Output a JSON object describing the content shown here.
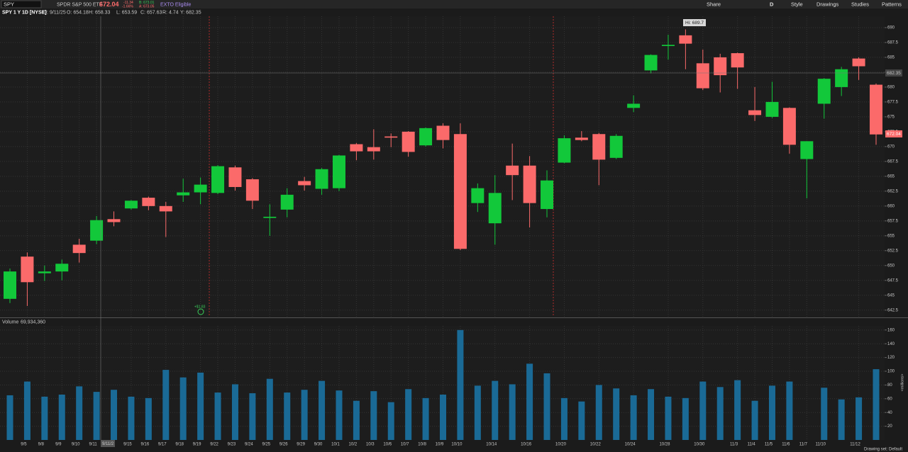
{
  "toolbar": {
    "symbol": "SPY",
    "description": "SPDR S&P 500 ETF",
    "last": "672.04",
    "change": "-11.34",
    "change_pct": "-1.66%",
    "bid": "B: 673.01",
    "ask": "A: 673.05",
    "badge": "EXTO Eligible",
    "buttons": [
      "Share",
      "D",
      "Style",
      "Drawings",
      "Studies",
      "Patterns"
    ]
  },
  "header": {
    "title": "SPY 1 Y 1D [NYSE]",
    "date": "D: 9/11/25",
    "open": "O: 654.18",
    "high": "H: 658.33",
    "low": "L: 653.59",
    "close": "C: 657.63",
    "range": "R: 4.74",
    "cursor": "Y: 682.35"
  },
  "chart_data": [
    {
      "type": "candlestick",
      "categories": [
        null,
        "9/5",
        "9/8",
        "9/9",
        "9/10",
        "9/11",
        null,
        "9/15",
        "9/16",
        "9/17",
        "9/18",
        "9/19",
        "9/22",
        "9/23",
        "9/24",
        "9/25",
        "9/26",
        "9/29",
        "9/30",
        "10/1",
        "10/2",
        "10/3",
        "10/6",
        "10/7",
        "10/8",
        "10/9",
        "10/10",
        null,
        "10/14",
        null,
        "10/16",
        null,
        "10/20",
        null,
        "10/22",
        null,
        "10/24",
        null,
        "10/28",
        null,
        "10/30",
        null,
        "11/3",
        "11/4",
        "11/5",
        "11/6",
        "11/7",
        "11/10",
        null,
        "11/12",
        null
      ],
      "open": [
        644.4,
        651.5,
        648.7,
        649.0,
        653.5,
        654.18,
        657.8,
        659.6,
        661.4,
        660.0,
        661.8,
        662.3,
        662.2,
        666.5,
        664.5,
        658.0,
        659.4,
        664.2,
        662.9,
        663.0,
        670.4,
        669.9,
        671.7,
        672.5,
        670.2,
        673.5,
        672.1,
        660.5,
        657.1,
        666.8,
        666.8,
        659.5,
        667.3,
        671.5,
        672.1,
        668.1,
        676.5,
        682.8,
        686.9,
        688.7,
        684.0,
        685.0,
        685.7,
        676.1,
        675.0,
        676.5,
        667.9,
        677.2,
        680.0,
        684.8,
        680.4
      ],
      "high": [
        649.5,
        652.2,
        650.0,
        651.0,
        654.5,
        658.33,
        659.1,
        661.0,
        661.6,
        660.7,
        664.6,
        664.8,
        666.9,
        666.8,
        664.7,
        660.3,
        663.0,
        664.9,
        666.4,
        668.6,
        670.6,
        672.9,
        672.2,
        672.6,
        673.2,
        673.9,
        673.9,
        663.8,
        665.2,
        670.5,
        668.4,
        666.0,
        671.9,
        672.6,
        672.3,
        672.1,
        678.6,
        685.5,
        688.8,
        689.7,
        686.3,
        685.6,
        685.8,
        680.0,
        680.9,
        676.6,
        670.9,
        681.5,
        683.4,
        685.0,
        680.6
      ],
      "low": [
        643.7,
        643.2,
        647.4,
        647.5,
        650.5,
        653.59,
        656.6,
        659.4,
        659.3,
        654.8,
        660.7,
        660.3,
        662.0,
        662.6,
        659.5,
        655.0,
        658.1,
        662.6,
        661.9,
        662.5,
        667.7,
        667.8,
        669.9,
        668.3,
        670.0,
        669.7,
        652.6,
        659.0,
        653.5,
        661.0,
        656.4,
        658.1,
        667.2,
        670.9,
        663.5,
        667.9,
        675.8,
        682.3,
        684.6,
        683.0,
        679.5,
        679.1,
        679.7,
        674.3,
        674.8,
        668.8,
        661.3,
        674.7,
        678.5,
        681.2,
        670.3
      ],
      "close": [
        649.0,
        647.2,
        649.0,
        650.3,
        652.1,
        657.63,
        657.3,
        660.9,
        660.0,
        659.1,
        662.3,
        663.6,
        666.7,
        663.2,
        660.9,
        658.2,
        661.9,
        663.5,
        666.2,
        668.5,
        669.2,
        669.2,
        671.5,
        669.1,
        673.1,
        671.1,
        652.8,
        663.0,
        662.2,
        665.2,
        660.5,
        664.3,
        671.4,
        671.1,
        667.8,
        671.8,
        677.2,
        685.4,
        687.1,
        687.3,
        679.8,
        682.0,
        683.3,
        675.3,
        677.5,
        670.3,
        670.9,
        681.4,
        683.0,
        683.5,
        672.04
      ],
      "up_color": "#12c83a",
      "down_color": "#fb6a6a",
      "ylim": [
        641.4,
        691.9
      ],
      "yticks": [
        642.5,
        645,
        647.5,
        650,
        652.5,
        655,
        657.5,
        660,
        662.5,
        665,
        667.5,
        670,
        672.5,
        675,
        677.5,
        680,
        682.5,
        685,
        687.5,
        690
      ],
      "grid": true,
      "annotations": {
        "high_label": "Hi: 689.7",
        "cursor_price": "682.35",
        "last_price": "672.04",
        "dividend": "+$1.83",
        "cursor_date": "9/11/2"
      }
    },
    {
      "type": "bar",
      "title": "Volume",
      "subtitle": "69,934,360",
      "y_label": "<millions>",
      "values": [
        65,
        85,
        63,
        66,
        78,
        70,
        73,
        63,
        61,
        102,
        91,
        98,
        69,
        81,
        68,
        89,
        69,
        73,
        86,
        72,
        57,
        71,
        55,
        74,
        61,
        66,
        160,
        79,
        86,
        81,
        111,
        97,
        61,
        56,
        80,
        75,
        65,
        74,
        63,
        61,
        85,
        77,
        87,
        57,
        79,
        85,
        null,
        76,
        59,
        62,
        103
      ],
      "color": "#1a6a96",
      "ylim": [
        0,
        166
      ],
      "yticks": [
        20,
        40,
        60,
        80,
        100,
        120,
        140,
        160
      ],
      "grid": true
    }
  ],
  "footer": {
    "drawing_set": "Drawing set: Default"
  }
}
